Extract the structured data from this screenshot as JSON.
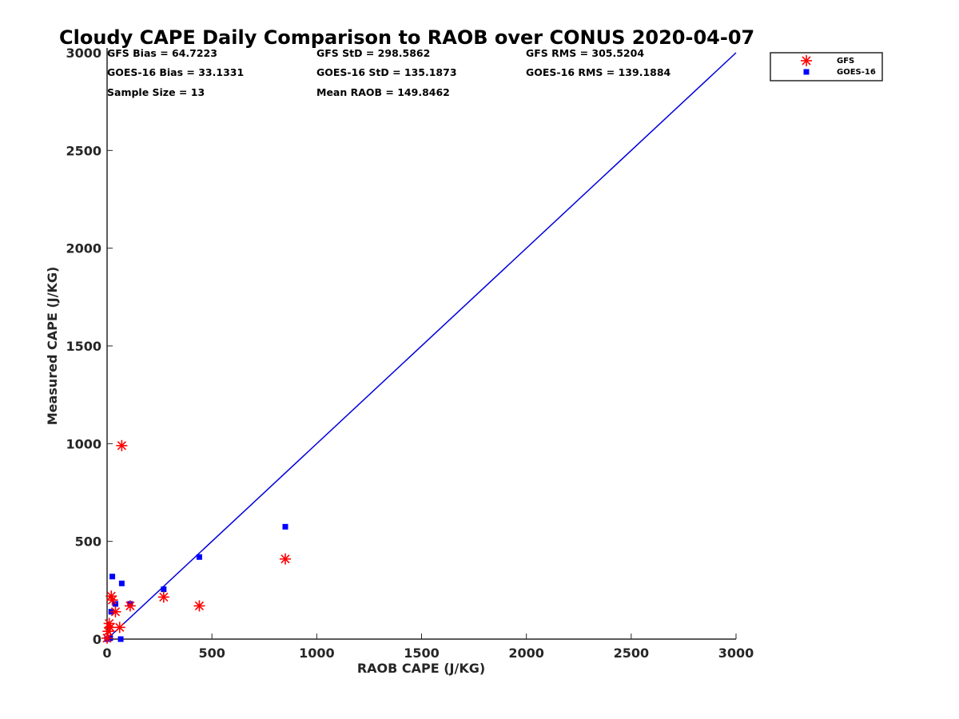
{
  "chart_data": {
    "type": "scatter",
    "title": "Cloudy CAPE Daily Comparison to RAOB over CONUS 2020-04-07",
    "xlabel": "RAOB CAPE (J/KG)",
    "ylabel": "Measured CAPE (J/KG)",
    "xlim": [
      0,
      3000
    ],
    "ylim": [
      0,
      3000
    ],
    "xticks": [
      0,
      500,
      1000,
      1500,
      2000,
      2500,
      3000
    ],
    "yticks": [
      0,
      500,
      1000,
      1500,
      2000,
      2500,
      3000
    ],
    "grid": false,
    "legend_position": "top-right",
    "stats": [
      "GFS Bias = 64.7223",
      "GFS StD = 298.5862",
      "GFS RMS = 305.5204",
      "GOES-16 Bias = 33.1331",
      "GOES-16 StD = 135.1873",
      "GOES-16 RMS = 139.1884",
      "Sample Size = 13",
      "Mean RAOB = 149.8462"
    ],
    "one_to_one_line": {
      "x": [
        0,
        3000
      ],
      "y": [
        0,
        3000
      ],
      "color": "#0000dd"
    },
    "series": [
      {
        "name": "GFS",
        "marker": "asterisk",
        "color": "#ff0000",
        "x": [
          0,
          5,
          10,
          15,
          20,
          25,
          40,
          60,
          70,
          110,
          270,
          440,
          850
        ],
        "y": [
          5,
          40,
          80,
          60,
          220,
          200,
          140,
          60,
          990,
          170,
          215,
          170,
          410
        ]
      },
      {
        "name": "GOES-16",
        "marker": "square",
        "color": "#0000ff",
        "x": [
          0,
          5,
          10,
          20,
          25,
          40,
          65,
          70,
          110,
          270,
          440,
          850,
          15
        ],
        "y": [
          0,
          0,
          5,
          140,
          320,
          180,
          0,
          285,
          180,
          255,
          420,
          575,
          5
        ]
      }
    ]
  }
}
